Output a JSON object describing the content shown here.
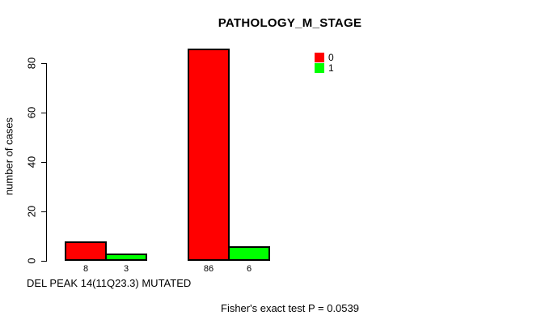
{
  "chart_data": {
    "type": "bar",
    "title": "PATHOLOGY_M_STAGE",
    "ylabel": "number of cases",
    "xlabel": "DEL PEAK 14(11Q23.3) MUTATED",
    "annotation": "Fisher's exact test P = 0.0539",
    "yticks": [
      0,
      20,
      40,
      60,
      80
    ],
    "ylim": [
      0,
      88
    ],
    "grid": false,
    "show_value_labels": true,
    "series": [
      {
        "name": "0",
        "color": "#ff0000",
        "values": [
          8,
          86
        ]
      },
      {
        "name": "1",
        "color": "#00ff00",
        "values": [
          3,
          6
        ]
      }
    ],
    "legend": {
      "position": "top-right",
      "entries": [
        {
          "label": "0",
          "color": "#ff0000"
        },
        {
          "label": "1",
          "color": "#00ff00"
        }
      ]
    },
    "colors": {
      "background": "#ffffff",
      "axis": "#000000",
      "text": "#000000"
    }
  }
}
